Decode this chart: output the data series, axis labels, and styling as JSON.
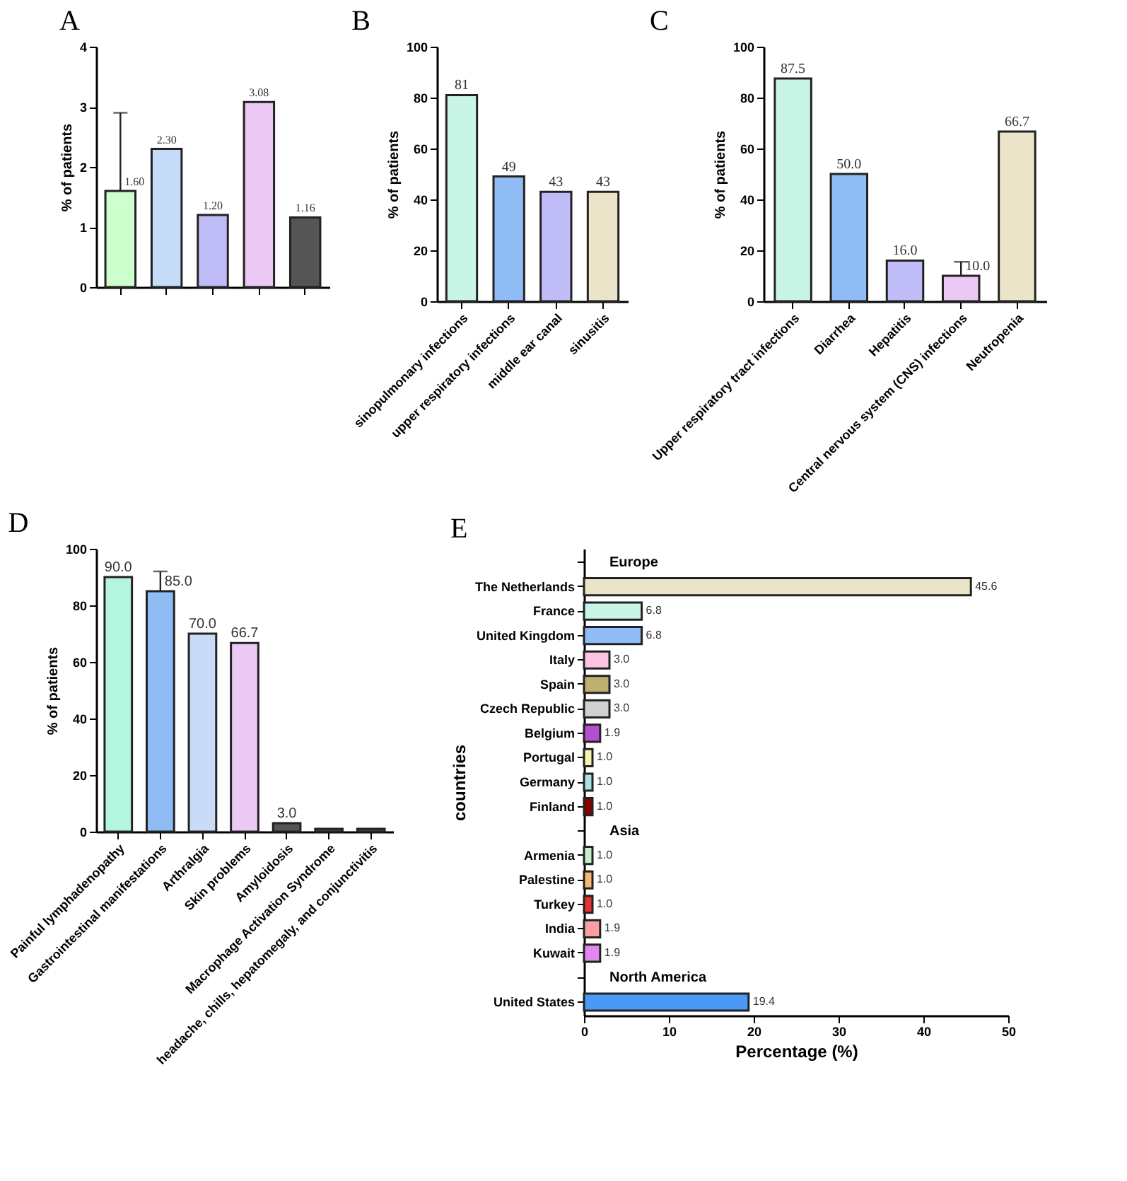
{
  "chart_data": [
    {
      "type": "bar",
      "title": "A",
      "ylabel": "% of patients",
      "categories": [
        null,
        null,
        null,
        null,
        null
      ],
      "values": [
        1.6,
        2.3,
        1.2,
        3.08,
        1.16
      ],
      "colors": [
        "#ccffcc",
        "#c4dcf8",
        "#c0bcf8",
        "#ecc8f4",
        "#555555"
      ],
      "errors": [
        [
          1.6,
          2.9
        ],
        null,
        null,
        null,
        null
      ],
      "value_labels": [
        "1.60",
        "2.30",
        "1.20",
        "3.08",
        "1.16"
      ],
      "ylim": [
        0,
        4
      ],
      "yticks": [
        0,
        1,
        2,
        3,
        4
      ]
    },
    {
      "type": "bar",
      "title": "B",
      "ylabel": "% of patients",
      "categories": [
        "sinopulmonary infections",
        "upper respiratory infections",
        "middle ear canal",
        "sinusitis"
      ],
      "values": [
        81,
        49,
        43,
        43
      ],
      "colors": [
        "#c8f5e6",
        "#8fbcf5",
        "#c0bcf8",
        "#ece4c8"
      ],
      "value_labels": [
        "81",
        "49",
        "43",
        "43"
      ],
      "ylim": [
        0,
        100
      ],
      "yticks": [
        0,
        20,
        40,
        60,
        80,
        100
      ]
    },
    {
      "type": "bar",
      "title": "C",
      "ylabel": "% of patients",
      "categories": [
        "Upper respiratory tract infections",
        "Diarrhea",
        "Hepatitis",
        "Central nervous system (CNS) infections",
        "Neutropenia"
      ],
      "values": [
        87.5,
        50.0,
        16.0,
        10.0,
        66.7
      ],
      "colors": [
        "#c8f5e6",
        "#8fbcf5",
        "#c0bcf8",
        "#ecc8f4",
        "#ece4c8"
      ],
      "errors": [
        null,
        null,
        null,
        [
          10.0,
          15.5
        ],
        null
      ],
      "value_labels": [
        "87.5",
        "50.0",
        "16.0",
        "10.0",
        "66.7"
      ],
      "ylim": [
        0,
        100
      ],
      "yticks": [
        0,
        20,
        40,
        60,
        80,
        100
      ]
    },
    {
      "type": "bar",
      "title": "D",
      "ylabel": "% of patients",
      "categories": [
        "Painful lymphadenopathy",
        "Gastrointestinal manifestations",
        "Arthralgia",
        "Skin problems",
        "Amyloidosis",
        "Macrophage Activation Syndrome",
        "headache, chills, hepatomegaly, and conjunctivitis"
      ],
      "values": [
        90.0,
        85.0,
        70.0,
        66.7,
        3.0,
        1.0,
        1.0
      ],
      "colors": [
        "#b4f5e0",
        "#8fbcf5",
        "#c8dcf8",
        "#ecc8f4",
        "#555555",
        "#555555",
        "#555555"
      ],
      "errors": [
        null,
        [
          85.0,
          92.0
        ],
        null,
        null,
        null,
        null,
        null
      ],
      "value_labels": [
        "90.0",
        "85.0",
        "70.0",
        "66.7",
        "3.0",
        null,
        null
      ],
      "ylim": [
        0,
        100
      ],
      "yticks": [
        0,
        20,
        40,
        60,
        80,
        100
      ]
    },
    {
      "type": "bar",
      "orientation": "horizontal",
      "title": "E",
      "xlabel": "Percentage (%)",
      "ylabel": "countries",
      "categories": [
        null,
        "The Netherlands",
        "France",
        "United Kingdom",
        "Italy",
        "Spain",
        "Czech Republic",
        "Belgium",
        "Portugal",
        "Germany",
        "Finland",
        null,
        "Armenia",
        "Palestine",
        "Turkey",
        "India",
        "Kuwait",
        null,
        "United States"
      ],
      "values": [
        null,
        45.6,
        6.8,
        6.8,
        3.0,
        3.0,
        3.0,
        1.9,
        1.0,
        1.0,
        1.0,
        null,
        1.0,
        1.0,
        1.0,
        1.9,
        1.9,
        null,
        19.4
      ],
      "colors": [
        null,
        "#ece4c8",
        "#c8f5e6",
        "#8fbcf5",
        "#fbc4e0",
        "#bdb070",
        "#d0d0d0",
        "#b44fd0",
        "#f8f4b0",
        "#b0e0e0",
        "#8b0000",
        null,
        "#c8f0c8",
        "#f8b870",
        "#e83030",
        "#f8a0a0",
        "#e088f0",
        null,
        "#4a9af5"
      ],
      "value_labels": [
        null,
        "45.6",
        "6.8",
        "6.8",
        "3.0",
        "3.0",
        "3.0",
        "1.9",
        "1.0",
        "1.0",
        "1.0",
        null,
        "1.0",
        "1.0",
        "1.0",
        "1.9",
        "1.9",
        null,
        "19.4"
      ],
      "annotations": [
        "Europe",
        "Asia",
        "North America"
      ],
      "xlim": [
        0,
        50
      ],
      "xticks": [
        0,
        10,
        20,
        30,
        40,
        50
      ]
    }
  ]
}
